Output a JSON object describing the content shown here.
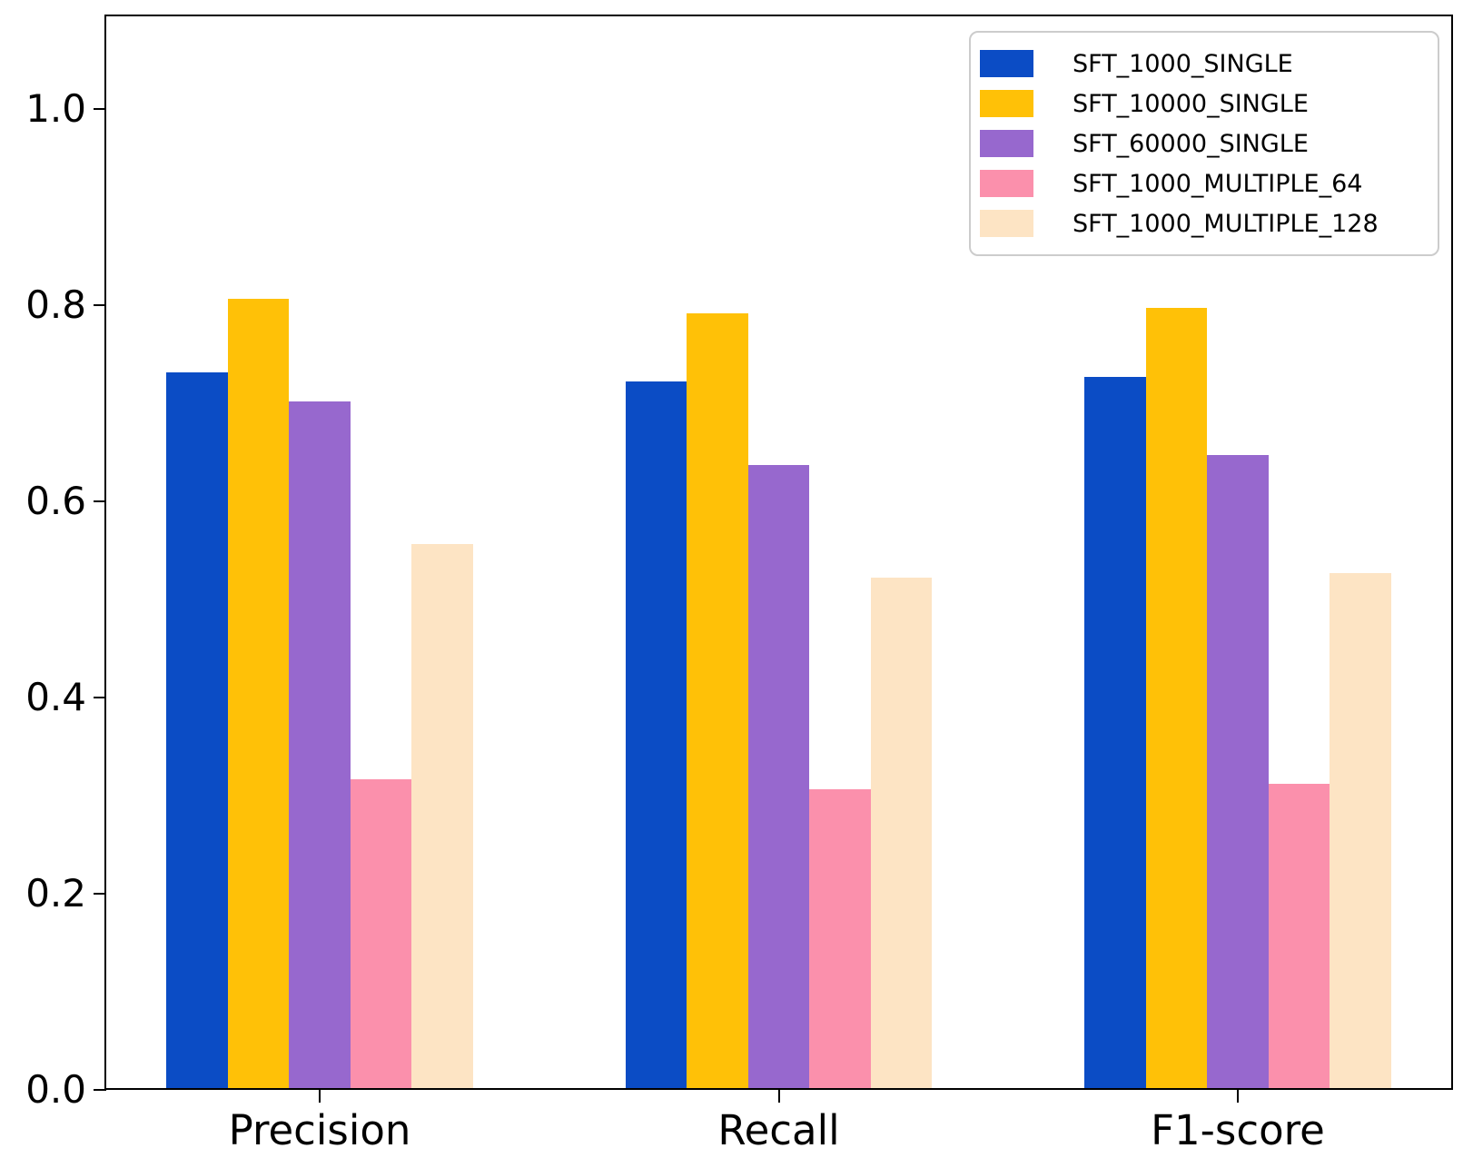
{
  "figure": {
    "background_color": "#ffffff",
    "spine_color": "#000000",
    "legend_border_color": "#cccccc"
  },
  "y_axis": {
    "ticks": [
      "0.0",
      "0.2",
      "0.4",
      "0.6",
      "0.8",
      "1.0"
    ],
    "tick_values": [
      0.0,
      0.2,
      0.4,
      0.6,
      0.8,
      1.0
    ]
  },
  "x_axis": {
    "categories": [
      "Precision",
      "Recall",
      "F1-score"
    ]
  },
  "legend": {
    "position": "upper right",
    "labels": [
      "SFT_1000_SINGLE",
      "SFT_10000_SINGLE",
      "SFT_60000_SINGLE",
      "SFT_1000_MULTIPLE_64",
      "SFT_1000_MULTIPLE_128"
    ]
  },
  "chart_data": {
    "type": "bar",
    "title": "",
    "xlabel": "",
    "ylabel": "",
    "grid": false,
    "legend_position": "upper right",
    "ylim": [
      0,
      1.09
    ],
    "yticks": [
      0.0,
      0.2,
      0.4,
      0.6,
      0.8,
      1.0
    ],
    "categories": [
      "Precision",
      "Recall",
      "F1-score"
    ],
    "series": [
      {
        "name": "SFT_1000_SINGLE",
        "color": "#0b4cc5",
        "values": [
          0.73,
          0.72,
          0.725
        ]
      },
      {
        "name": "SFT_10000_SINGLE",
        "color": "#ffc107",
        "values": [
          0.805,
          0.79,
          0.795
        ]
      },
      {
        "name": "SFT_60000_SINGLE",
        "color": "#9768ce",
        "values": [
          0.7,
          0.635,
          0.645
        ]
      },
      {
        "name": "SFT_1000_MULTIPLE_64",
        "color": "#fb90ac",
        "values": [
          0.315,
          0.305,
          0.31
        ]
      },
      {
        "name": "SFT_1000_MULTIPLE_128",
        "color": "#fde4c4",
        "values": [
          0.555,
          0.52,
          0.525
        ]
      }
    ]
  }
}
